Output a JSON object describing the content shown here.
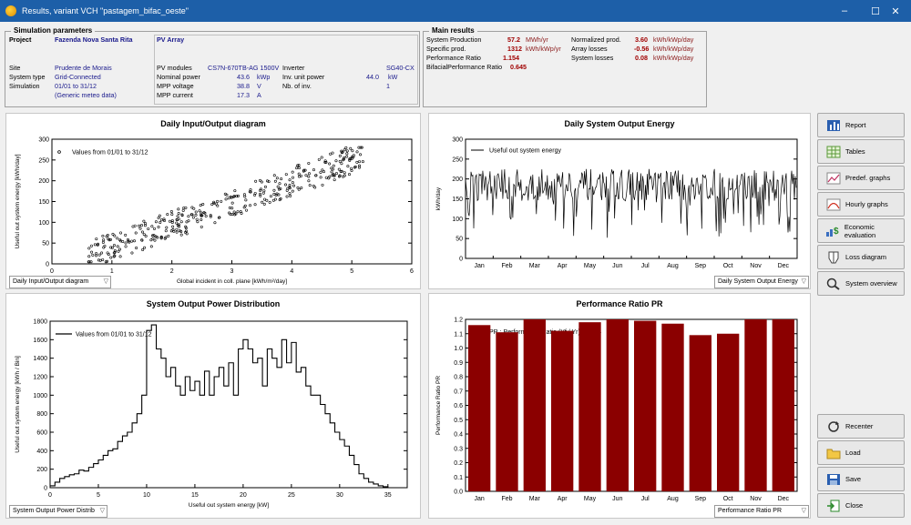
{
  "window": {
    "title": "Results, variant VCH  \"pastagem_bifac_oeste\"",
    "min": "–",
    "max": "☐",
    "close": "✕"
  },
  "sim": {
    "group_title": "Simulation parameters",
    "project_label": "Project",
    "project_value": "Fazenda Nova Santa Rita",
    "site_label": "Site",
    "site_value": "Prudente de Morais",
    "systype_label": "System type",
    "systype_value": "Grid-Connected",
    "simulation_label": "Simulation",
    "simulation_value": "01/01 to 31/12",
    "simulation_note": "(Generic meteo data)",
    "pv_array": "PV Array",
    "modules_label": "PV modules",
    "modules_value": "CS7N-670TB-AG 1500V",
    "nompower_label": "Nominal power",
    "nompower_value": "43.6",
    "nompower_unit": "kWp",
    "mppv_label": "MPP voltage",
    "mppv_value": "38.8",
    "mppv_unit": "V",
    "mppi_label": "MPP current",
    "mppi_value": "17.3",
    "mppi_unit": "A",
    "inverter_label": "Inverter",
    "inverter_value": "SG40-CX",
    "invpower_label": "Inv. unit power",
    "invpower_value": "44.0",
    "invpower_unit": "kW",
    "nbinv_label": "Nb. of inv.",
    "nbinv_value": "1"
  },
  "main": {
    "group_title": "Main results",
    "sysprod_label": "System Production",
    "sysprod_value": "57.2",
    "sysprod_unit": "MWh/yr",
    "specprod_label": "Specific prod.",
    "specprod_value": "1312",
    "specprod_unit": "kWh/kWp/yr",
    "pr_label": "Performance Ratio",
    "pr_value": "1.154",
    "bifpr_label": "BifacialPerformance Ratio",
    "bifpr_value": "0.645",
    "normprod_label": "Normalized prod.",
    "normprod_value": "3.60",
    "normprod_unit": "kWh/kWp/day",
    "arrloss_label": "Array losses",
    "arrloss_value": "-0.56",
    "arrloss_unit": "kWh/kWp/day",
    "sysloss_label": "System losses",
    "sysloss_value": "0.08",
    "sysloss_unit": "kWh/kWp/day"
  },
  "buttons": {
    "report": "Report",
    "tables": "Tables",
    "predef": "Predef. graphs",
    "hourly": "Hourly graphs",
    "economic": "Economic evaluation",
    "loss": "Loss diagram",
    "overview": "System overview",
    "recenter": "Recenter",
    "load": "Load",
    "save": "Save",
    "close": "Close"
  },
  "icons": [
    "report-icon",
    "tables-icon",
    "graph-icon",
    "hourly-graph-icon",
    "economic-icon",
    "loss-diagram-icon",
    "search-icon",
    "recenter-icon",
    "folder-icon",
    "save-icon",
    "close-icon"
  ],
  "dropdowns": {
    "io": "Daily Input/Output diagram",
    "daily": "Daily System Output Energy",
    "power": "System Output Power Distrib",
    "pr": "Performance Ratio PR"
  },
  "chart_data": [
    {
      "type": "scatter",
      "title": "Daily Input/Output diagram",
      "xlabel": "Global incident in coll. plane [kWh/m²/day]",
      "ylabel": "Useful out system energy [kWh/day]",
      "xlim": [
        0,
        6
      ],
      "ylim": [
        0,
        300
      ],
      "xticks": [
        0,
        1,
        2,
        3,
        4,
        5,
        6
      ],
      "yticks": [
        0,
        50,
        100,
        150,
        200,
        250,
        300
      ],
      "legend": "Values from 01/01 to 31/12",
      "legend_position": "top-left",
      "marker_color": "#000000"
    },
    {
      "type": "line",
      "title": "Daily System Output Energy",
      "ylabel": "kWh/day",
      "xlim_days": [
        0,
        365
      ],
      "ylim": [
        0,
        300
      ],
      "yticks": [
        0,
        50,
        100,
        150,
        200,
        250,
        300
      ],
      "categories": [
        "Jan",
        "Feb",
        "Mar",
        "Apr",
        "May",
        "Jun",
        "Jul",
        "Aug",
        "Sep",
        "Oct",
        "Nov",
        "Dec"
      ],
      "legend": "Useful out system energy",
      "legend_position": "top-left",
      "series_color": "#000000"
    },
    {
      "type": "line",
      "title": "System Output Power Distribution",
      "xlabel": "Useful out system energy [kW]",
      "ylabel": "Useful out system energy [kWh / Bin]",
      "xlim": [
        0,
        37
      ],
      "ylim": [
        0,
        1800
      ],
      "xticks": [
        0,
        5,
        10,
        15,
        20,
        25,
        30,
        35
      ],
      "yticks": [
        0,
        200,
        400,
        600,
        800,
        1000,
        1200,
        1400,
        1600,
        1800
      ],
      "legend": "Values from 01/01 to 31/12",
      "legend_position": "top-left",
      "x": [
        0,
        0.5,
        1,
        1.5,
        2,
        2.5,
        3,
        3.5,
        4,
        4.5,
        5,
        5.5,
        6,
        6.5,
        7,
        7.5,
        8,
        8.5,
        9,
        9.5,
        10,
        10.5,
        11,
        11.5,
        12,
        12.5,
        13,
        13.5,
        14,
        14.5,
        15,
        15.5,
        16,
        16.5,
        17,
        17.5,
        18,
        18.5,
        19,
        19.5,
        20,
        20.5,
        21,
        21.5,
        22,
        22.5,
        23,
        23.5,
        24,
        24.5,
        25,
        25.5,
        26,
        26.5,
        27,
        27.5,
        28,
        28.5,
        29,
        29.5,
        30,
        30.5,
        31,
        31.5,
        32,
        32.5,
        33,
        33.5,
        34,
        34.5,
        35
      ],
      "values": [
        20,
        60,
        100,
        120,
        140,
        150,
        190,
        180,
        220,
        260,
        300,
        350,
        400,
        420,
        500,
        560,
        600,
        700,
        800,
        1000,
        1700,
        1760,
        1500,
        1400,
        1200,
        1300,
        1100,
        1000,
        1200,
        1050,
        1150,
        1000,
        1260,
        1000,
        1200,
        1300,
        1100,
        1350,
        1000,
        1500,
        1600,
        1500,
        1350,
        1400,
        1100,
        1500,
        1400,
        1300,
        1600,
        1350,
        1570,
        1250,
        1300,
        1100,
        1000,
        1000,
        900,
        800,
        700,
        600,
        520,
        450,
        350,
        250,
        150,
        100,
        60,
        40,
        20,
        10,
        0
      ]
    },
    {
      "type": "bar",
      "title": "Performance Ratio PR",
      "ylabel": "Performance Ratio PR",
      "categories": [
        "Jan",
        "Feb",
        "Mar",
        "Apr",
        "May",
        "Jun",
        "Jul",
        "Aug",
        "Sep",
        "Oct",
        "Nov",
        "Dec"
      ],
      "values": [
        1.16,
        1.11,
        1.2,
        1.12,
        1.18,
        1.2,
        1.19,
        1.17,
        1.09,
        1.1,
        1.22,
        1.2
      ],
      "ylim": [
        0,
        1.2
      ],
      "yticks": [
        0,
        0.1,
        0.2,
        0.3,
        0.4,
        0.5,
        0.6,
        0.7,
        0.8,
        0.9,
        1.0,
        1.1,
        1.2
      ],
      "legend": "PR : Performance Ratio (Yf / Yr) : 1.154",
      "legend_position": "top-left",
      "bar_color": "#8b0000"
    }
  ]
}
